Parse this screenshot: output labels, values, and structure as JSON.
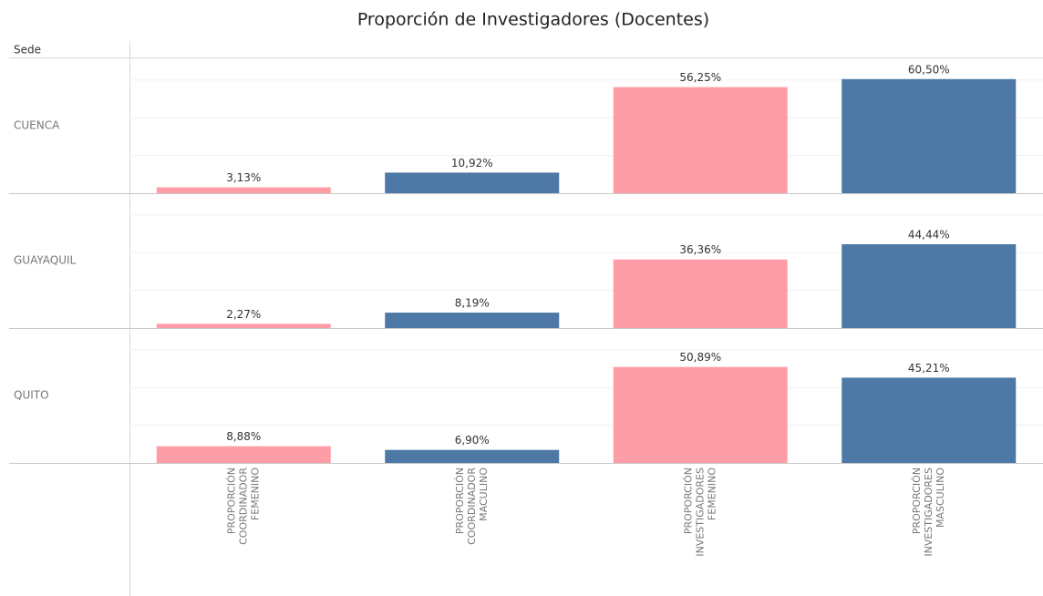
{
  "chart_data": {
    "type": "bar",
    "title": "Proporción de Investigadores (Docentes)",
    "row_header": "Sede",
    "categories": [
      [
        "PROPORCIÓN",
        "COORDINADOR",
        "FEMENINO"
      ],
      [
        "PROPORCIÓN",
        "COORDINADOR",
        "MACULINO"
      ],
      [
        "PROPORCIÓN",
        "INVESTIGADORES",
        "FEMENINO"
      ],
      [
        "PROPORCIÓN",
        "INVESTIGADORES",
        "MASCULINO"
      ]
    ],
    "colors": [
      "#ff9da7",
      "#4e79a7",
      "#ff9da7",
      "#4e79a7"
    ],
    "series": [
      {
        "name": "CUENCA",
        "values": [
          3.13,
          10.92,
          56.25,
          60.5
        ],
        "value_labels": [
          "3,13%",
          "10,92%",
          "56,25%",
          "60,50%"
        ]
      },
      {
        "name": "GUAYAQUIL",
        "values": [
          2.27,
          8.19,
          36.36,
          44.44
        ],
        "value_labels": [
          "2,27%",
          "8,19%",
          "36,36%",
          "44,44%"
        ]
      },
      {
        "name": "QUITO",
        "values": [
          8.88,
          6.9,
          50.89,
          45.21
        ],
        "value_labels": [
          "8,88%",
          "6,90%",
          "50,89%",
          "45,21%"
        ]
      }
    ],
    "ylim": [
      0,
      71.5
    ],
    "yticks": [
      0,
      20,
      40,
      60
    ],
    "grid": true
  }
}
